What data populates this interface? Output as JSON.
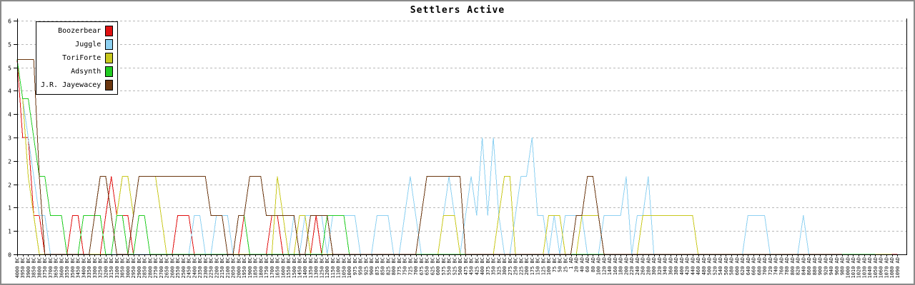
{
  "title": "Settlers Active",
  "colors": {
    "background": "#ffffff",
    "frame_border": "#8a8a8a",
    "axis": "#000000",
    "grid": "#b8b8b8"
  },
  "chart_data": {
    "type": "line",
    "title": "Settlers Active",
    "xlabel": "",
    "ylabel": "",
    "ylim": [
      0,
      6
    ],
    "y_tick_step": 0.6,
    "y_tick_labels": [
      "0",
      "1",
      "1",
      "2",
      "2",
      "3",
      "4",
      "4",
      "5",
      "5",
      "6"
    ],
    "grid": "horizontal-dashed",
    "legend_position": "top-left",
    "x_labels": [
      "4000 BC",
      "3950 BC",
      "3900 BC",
      "3850 BC",
      "3800 BC",
      "3750 BC",
      "3700 BC",
      "3650 BC",
      "3600 BC",
      "3550 BC",
      "3500 BC",
      "3450 BC",
      "3400 BC",
      "3350 BC",
      "3300 BC",
      "3250 BC",
      "3200 BC",
      "3150 BC",
      "3100 BC",
      "3050 BC",
      "3000 BC",
      "2950 BC",
      "2900 BC",
      "2850 BC",
      "2800 BC",
      "2750 BC",
      "2700 BC",
      "2650 BC",
      "2600 BC",
      "2550 BC",
      "2500 BC",
      "2450 BC",
      "2400 BC",
      "2350 BC",
      "2300 BC",
      "2250 BC",
      "2200 BC",
      "2150 BC",
      "2100 BC",
      "2050 BC",
      "2000 BC",
      "1950 BC",
      "1900 BC",
      "1850 BC",
      "1800 BC",
      "1750 BC",
      "1700 BC",
      "1650 BC",
      "1600 BC",
      "1550 BC",
      "1500 BC",
      "1450 BC",
      "1400 BC",
      "1350 BC",
      "1300 BC",
      "1250 BC",
      "1200 BC",
      "1150 BC",
      "1100 BC",
      "1050 BC",
      "1000 BC",
      "975 BC",
      "950 BC",
      "925 BC",
      "900 BC",
      "875 BC",
      "850 BC",
      "825 BC",
      "800 BC",
      "775 BC",
      "750 BC",
      "725 BC",
      "700 BC",
      "675 BC",
      "650 BC",
      "625 BC",
      "600 BC",
      "575 BC",
      "550 BC",
      "525 BC",
      "500 BC",
      "475 BC",
      "450 BC",
      "425 BC",
      "400 BC",
      "375 BC",
      "350 BC",
      "325 BC",
      "300 BC",
      "275 BC",
      "250 BC",
      "225 BC",
      "200 BC",
      "175 BC",
      "150 BC",
      "125 BC",
      "100 BC",
      "75 BC",
      "50 BC",
      "25 BC",
      "1 AD",
      "20 AD",
      "40 AD",
      "60 AD",
      "80 AD",
      "100 AD",
      "120 AD",
      "140 AD",
      "160 AD",
      "180 AD",
      "200 AD",
      "220 AD",
      "240 AD",
      "260 AD",
      "280 AD",
      "300 AD",
      "320 AD",
      "340 AD",
      "360 AD",
      "380 AD",
      "400 AD",
      "420 AD",
      "440 AD",
      "460 AD",
      "480 AD",
      "500 AD",
      "520 AD",
      "540 AD",
      "560 AD",
      "580 AD",
      "600 AD",
      "620 AD",
      "640 AD",
      "660 AD",
      "680 AD",
      "700 AD",
      "720 AD",
      "740 AD",
      "760 AD",
      "780 AD",
      "800 AD",
      "820 AD",
      "840 AD",
      "860 AD",
      "880 AD",
      "900 AD",
      "920 AD",
      "940 AD",
      "960 AD",
      "980 AD",
      "1000 AD",
      "1010 AD",
      "1020 AD",
      "1030 AD",
      "1040 AD",
      "1050 AD",
      "1060 AD",
      "1070 AD",
      "1080 AD",
      "1090 AD"
    ],
    "series": [
      {
        "name": "Boozerbear",
        "color": "#e01010",
        "values": [
          5,
          3,
          3,
          1,
          1,
          0,
          0,
          0,
          0,
          0,
          1,
          1,
          0,
          0,
          0,
          0,
          1,
          2,
          1,
          1,
          1,
          0,
          0,
          0,
          0,
          0,
          0,
          0,
          0,
          1,
          1,
          1,
          0,
          0,
          0,
          0,
          0,
          0,
          0,
          0,
          0,
          1,
          0,
          0,
          0,
          0,
          1,
          1,
          0,
          0,
          0,
          0,
          0,
          0,
          1,
          0,
          0,
          0,
          0,
          0,
          0,
          0,
          0,
          0,
          0,
          0,
          0,
          0,
          0,
          0,
          0,
          0,
          0,
          0,
          0,
          0,
          0,
          0,
          0,
          0,
          0,
          0,
          0,
          0,
          0,
          0,
          0,
          0,
          0,
          0,
          0,
          0,
          0,
          0,
          0,
          0,
          0,
          0,
          0,
          0,
          0,
          0,
          0,
          0,
          0,
          0,
          0,
          0,
          0,
          0,
          0,
          0,
          0,
          0,
          0,
          0,
          0,
          0,
          0,
          0,
          0,
          0,
          0,
          0,
          0,
          0,
          0,
          0,
          0,
          0,
          0,
          0,
          0,
          0,
          0,
          0,
          0,
          0,
          0,
          0,
          0,
          0,
          0,
          0,
          0,
          0,
          0,
          0,
          0,
          0,
          0,
          0,
          0,
          0,
          0,
          0,
          0,
          0,
          0,
          0
        ]
      },
      {
        "name": "Juggle",
        "color": "#8ed1f2",
        "values": [
          5,
          4,
          3,
          2,
          1,
          1,
          0,
          0,
          0,
          0,
          0,
          0,
          0,
          0,
          0,
          0,
          0,
          0,
          0,
          0,
          0,
          0,
          0,
          0,
          0,
          0,
          0,
          0,
          0,
          0,
          0,
          0,
          1,
          1,
          0,
          0,
          1,
          1,
          1,
          0,
          0,
          0,
          0,
          0,
          0,
          0,
          0,
          0,
          0,
          0,
          1,
          0,
          1,
          1,
          1,
          1,
          0,
          1,
          1,
          1,
          1,
          1,
          0,
          0,
          0,
          1,
          1,
          1,
          0,
          0,
          1,
          2,
          1,
          0,
          0,
          0,
          0,
          1,
          2,
          1,
          0,
          1,
          2,
          1,
          3,
          1,
          3,
          1,
          0,
          0,
          1,
          2,
          2,
          3,
          1,
          1,
          0,
          1,
          0,
          1,
          1,
          1,
          1,
          0,
          0,
          0,
          1,
          1,
          1,
          1,
          2,
          0,
          1,
          1,
          2,
          0,
          0,
          0,
          0,
          0,
          0,
          0,
          0,
          0,
          0,
          0,
          0,
          0,
          0,
          0,
          0,
          0,
          1,
          1,
          1,
          1,
          0,
          0,
          0,
          0,
          0,
          0,
          1,
          0,
          0,
          0,
          0,
          0,
          0,
          null,
          null,
          null,
          null,
          null,
          null,
          null,
          null,
          null,
          null,
          null
        ]
      },
      {
        "name": "ToriForte",
        "color": "#c8c81e",
        "values": [
          5,
          4,
          2,
          1,
          0,
          0,
          0,
          0,
          0,
          0,
          0,
          0,
          0,
          0,
          0,
          0,
          0,
          0,
          1,
          2,
          2,
          1,
          2,
          2,
          2,
          2,
          1,
          0,
          0,
          0,
          0,
          0,
          0,
          0,
          0,
          0,
          0,
          0,
          0,
          0,
          0,
          0,
          0,
          0,
          0,
          0,
          0,
          2,
          1,
          0,
          0,
          1,
          1,
          0,
          0,
          0,
          0,
          0,
          0,
          0,
          0,
          0,
          0,
          0,
          0,
          0,
          0,
          0,
          0,
          0,
          0,
          0,
          0,
          0,
          0,
          0,
          0,
          1,
          1,
          1,
          0,
          0,
          0,
          0,
          0,
          0,
          0,
          1,
          2,
          2,
          0,
          0,
          0,
          0,
          0,
          0,
          1,
          1,
          1,
          0,
          0,
          0,
          1,
          1,
          1,
          1,
          0,
          0,
          0,
          0,
          0,
          0,
          0,
          1,
          1,
          1,
          1,
          1,
          1,
          1,
          1,
          1,
          1,
          0,
          0,
          0,
          0,
          0,
          0,
          0,
          0,
          0,
          0,
          0,
          0,
          0,
          0,
          0,
          0,
          0,
          0,
          0,
          0,
          0,
          0,
          0,
          0,
          0,
          0,
          0,
          0,
          0,
          0,
          0,
          0,
          0,
          0,
          0,
          0,
          null
        ]
      },
      {
        "name": "Adsynth",
        "color": "#22cc22",
        "values": [
          5,
          4,
          4,
          3,
          2,
          2,
          1,
          1,
          1,
          0,
          0,
          0,
          1,
          1,
          1,
          1,
          0,
          0,
          1,
          1,
          0,
          0,
          1,
          1,
          0,
          0,
          0,
          0,
          0,
          0,
          0,
          0,
          0,
          0,
          0,
          0,
          0,
          0,
          0,
          0,
          1,
          1,
          0,
          0,
          0,
          0,
          0,
          0,
          0,
          0,
          0,
          0,
          0,
          0,
          0,
          0,
          1,
          1,
          1,
          1,
          0,
          0,
          0,
          0,
          0,
          0,
          0,
          0,
          0,
          0,
          0,
          0,
          0,
          0,
          0,
          0,
          0,
          0,
          0,
          0,
          0,
          0,
          0,
          0,
          0,
          0,
          0,
          0,
          0,
          0,
          0,
          0,
          0,
          0,
          0,
          0,
          0,
          0,
          0,
          0,
          0,
          0,
          0,
          0,
          0,
          0,
          0,
          0,
          0,
          0,
          0,
          0,
          0,
          0,
          0,
          0,
          0,
          0,
          0,
          0,
          0,
          0,
          0,
          0,
          0,
          0,
          0,
          0,
          0,
          0,
          0,
          0,
          0,
          0,
          0,
          0,
          0,
          0,
          0,
          0,
          0,
          0,
          0,
          0,
          0,
          0,
          0,
          0,
          0,
          0,
          0,
          0,
          0,
          0,
          0,
          0,
          null,
          null,
          null,
          null
        ]
      },
      {
        "name": "J.R. Jayewacey",
        "color": "#6b3710",
        "values": [
          5,
          5,
          5,
          5,
          2,
          0,
          0,
          0,
          0,
          0,
          0,
          0,
          0,
          0,
          1,
          2,
          2,
          1,
          0,
          0,
          0,
          1,
          2,
          2,
          2,
          2,
          2,
          2,
          2,
          2,
          2,
          2,
          2,
          2,
          2,
          1,
          1,
          1,
          0,
          0,
          1,
          1,
          2,
          2,
          2,
          1,
          1,
          1,
          1,
          1,
          1,
          0,
          0,
          1,
          1,
          1,
          1,
          0,
          0,
          0,
          0,
          0,
          0,
          0,
          0,
          0,
          0,
          0,
          0,
          0,
          0,
          0,
          0,
          1,
          2,
          2,
          2,
          2,
          2,
          2,
          2,
          0,
          0,
          0,
          0,
          0,
          0,
          0,
          0,
          0,
          0,
          0,
          0,
          0,
          0,
          0,
          0,
          0,
          0,
          0,
          0,
          1,
          1,
          2,
          2,
          1,
          0,
          0,
          0,
          0,
          0,
          0,
          0,
          0,
          0,
          0,
          0,
          0,
          0,
          0,
          0,
          0,
          0,
          0,
          0,
          0,
          0,
          0,
          0,
          0,
          0,
          0,
          0,
          0,
          0,
          0,
          0,
          0,
          0,
          0,
          0,
          0,
          0,
          0,
          0,
          0,
          0,
          0,
          0,
          0,
          null,
          null,
          null,
          null,
          null,
          null,
          null,
          null,
          null,
          null
        ]
      }
    ]
  }
}
